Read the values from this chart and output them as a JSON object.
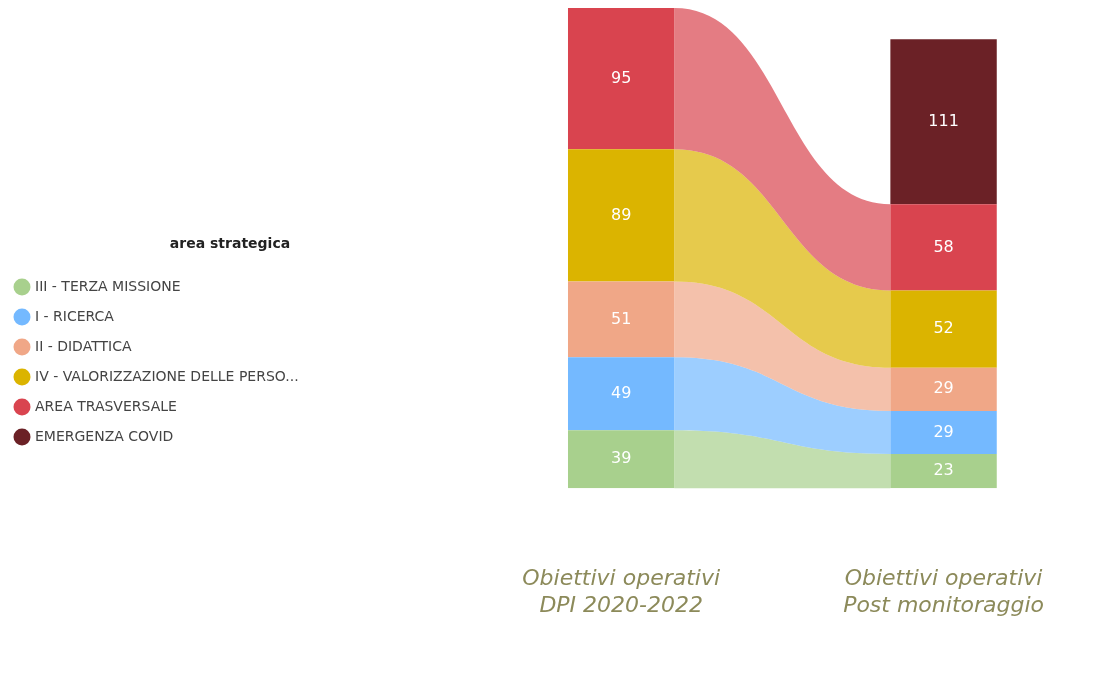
{
  "chart_data": {
    "type": "bar",
    "stacked": true,
    "data_labels": true,
    "legend": "left",
    "legend_title": "area strategica",
    "categories": [
      "Obiettivi operativi\nDPI 2020-2022",
      "Obiettivi operativi\nPost monitoraggio"
    ],
    "series": [
      {
        "name": "III - TERZA MISSIONE",
        "color": "#a8d08d",
        "values": [
          39,
          23
        ]
      },
      {
        "name": "I - RICERCA",
        "color": "#74b9ff",
        "values": [
          49,
          29
        ]
      },
      {
        "name": "II - DIDATTICA",
        "color": "#f0a787",
        "values": [
          51,
          29
        ]
      },
      {
        "name": "IV - VALORIZZAZIONE DELLE PERSO...",
        "color": "#dbb400",
        "values": [
          89,
          52
        ]
      },
      {
        "name": "AREA TRASVERSALE",
        "color": "#d9444f",
        "values": [
          95,
          58
        ]
      },
      {
        "name": "EMERGENZA COVID",
        "color": "#6b2126",
        "values": [
          null,
          111
        ]
      }
    ]
  }
}
